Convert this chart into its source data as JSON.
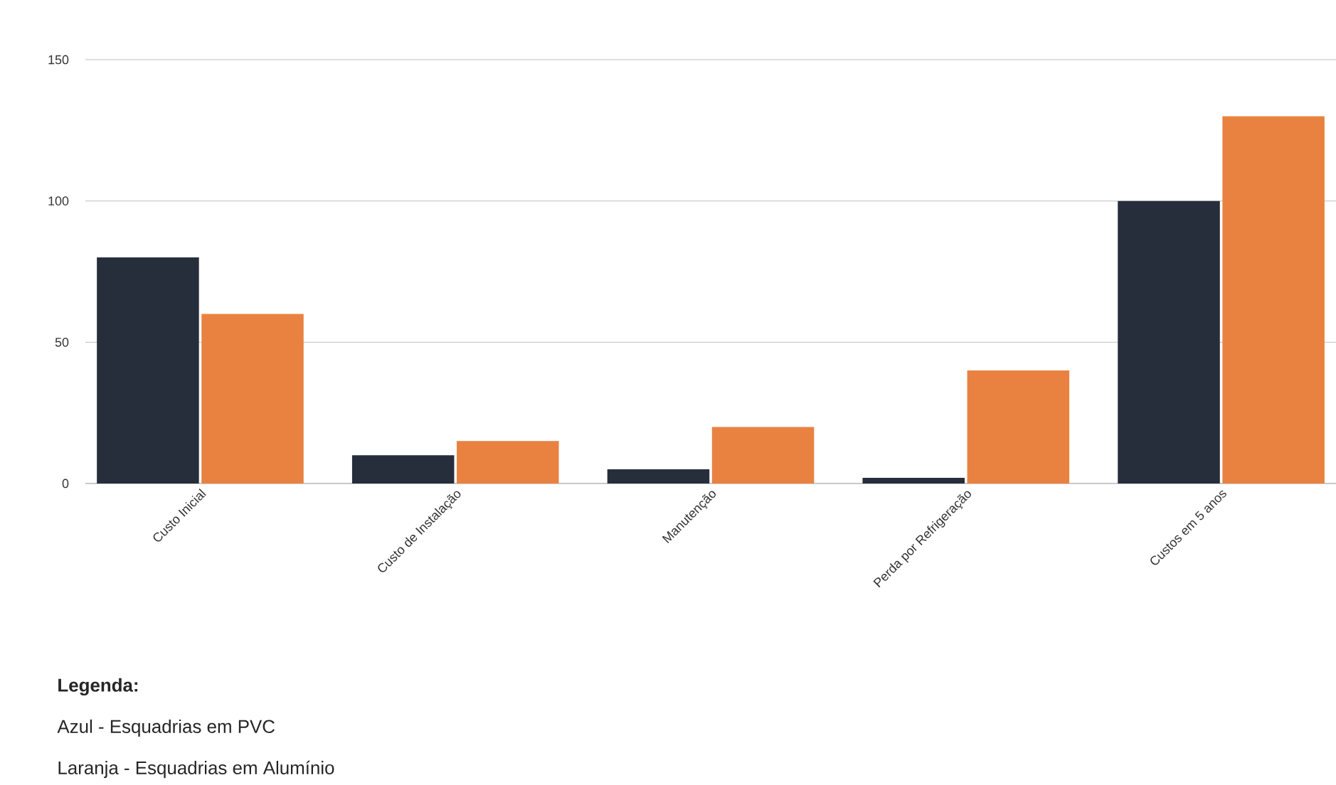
{
  "chart_data": {
    "type": "bar",
    "categories": [
      "Custo Inicial",
      "Custo de Instalação",
      "Manutenção",
      "Perda por Refrigeração",
      "Custos em 5 anos"
    ],
    "series": [
      {
        "color": "#262d3b",
        "values": [
          80,
          10,
          5,
          2,
          100
        ]
      },
      {
        "color": "#e98241",
        "values": [
          60,
          15,
          20,
          40,
          130
        ]
      }
    ],
    "ylim": [
      0,
      150
    ],
    "yticks": [
      0,
      50,
      100,
      150
    ],
    "grid": "y",
    "annotations": [
      "Legenda:",
      "Azul - Esquadrias em PVC",
      "Laranja - Esquadrias em Alumínio"
    ]
  }
}
